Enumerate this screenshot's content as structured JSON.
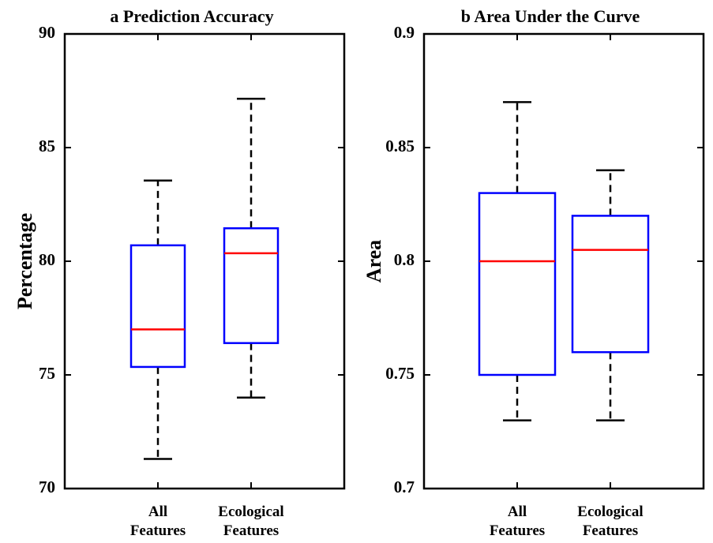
{
  "chart_data": [
    {
      "type": "box",
      "title": "a Prediction Accuracy",
      "xlabel": "",
      "ylabel": "Percentage",
      "ylim": [
        70,
        90
      ],
      "yticks": [
        "70",
        "75",
        "80",
        "85",
        "90"
      ],
      "categories": [
        [
          "All",
          "Features"
        ],
        [
          "Ecological",
          "Features"
        ]
      ],
      "boxes": [
        {
          "whisker_low": 71.3,
          "q1": 75.35,
          "median": 77.0,
          "q3": 80.7,
          "whisker_high": 83.55
        },
        {
          "whisker_low": 74.0,
          "q1": 76.4,
          "median": 80.35,
          "q3": 81.45,
          "whisker_high": 87.15
        }
      ],
      "grid": false
    },
    {
      "type": "box",
      "title": "b Area Under the Curve",
      "xlabel": "",
      "ylabel": "Area",
      "ylim": [
        0.7,
        0.9
      ],
      "yticks": [
        "0.7",
        "0.75",
        "0.8",
        "0.85",
        "0.9"
      ],
      "categories": [
        [
          "All",
          "Features"
        ],
        [
          "Ecological",
          "Features"
        ]
      ],
      "boxes": [
        {
          "whisker_low": 0.73,
          "q1": 0.75,
          "median": 0.8,
          "q3": 0.83,
          "whisker_high": 0.87
        },
        {
          "whisker_low": 0.73,
          "q1": 0.76,
          "median": 0.805,
          "q3": 0.82,
          "whisker_high": 0.84
        }
      ],
      "grid": false
    }
  ],
  "colors": {
    "box": "#0000ff",
    "median": "#ff0000",
    "whisker": "#000000",
    "axes": "#000000"
  }
}
